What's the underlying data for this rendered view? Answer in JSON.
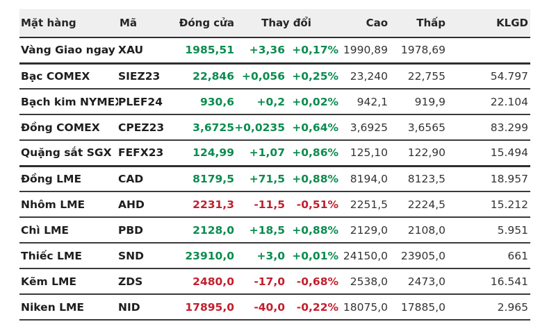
{
  "colors": {
    "up": "#0b8c4e",
    "down": "#c1202e",
    "header_bg": "#f0efef",
    "row_border": "#3a3a3a"
  },
  "chart_data": {
    "type": "table",
    "headers": {
      "name": "Mặt hàng",
      "code": "Mã",
      "close": "Đóng cửa",
      "change": "Thay đổi",
      "high": "Cao",
      "low": "Thấp",
      "volume": "KLGD"
    },
    "rows": [
      {
        "name": "Vàng Giao ngay",
        "code": "XAU",
        "close": "1985,51",
        "change": "+3,36",
        "change_pct": "+0,17%",
        "high": "1990,89",
        "low": "1978,69",
        "volume": "",
        "direction": "up",
        "group_end": true
      },
      {
        "name": "Bạc COMEX",
        "code": "SIEZ23",
        "close": "22,846",
        "change": "+0,056",
        "change_pct": "+0,25%",
        "high": "23,240",
        "low": "22,755",
        "volume": "54.797",
        "direction": "up",
        "group_end": false
      },
      {
        "name": "Bạch kim NYMEX",
        "code": "PLEF24",
        "close": "930,6",
        "change": "+0,2",
        "change_pct": "+0,02%",
        "high": "942,1",
        "low": "919,9",
        "volume": "22.104",
        "direction": "up",
        "group_end": false
      },
      {
        "name": "Đồng COMEX",
        "code": "CPEZ23",
        "close": "3,6725",
        "change": "+0,0235",
        "change_pct": "+0,64%",
        "high": "3,6925",
        "low": "3,6565",
        "volume": "83.299",
        "direction": "up",
        "group_end": false
      },
      {
        "name": "Quặng sắt SGX",
        "code": "FEFX23",
        "close": "124,99",
        "change": "+1,07",
        "change_pct": "+0,86%",
        "high": "125,10",
        "low": "122,90",
        "volume": "15.494",
        "direction": "up",
        "group_end": true
      },
      {
        "name": "Đồng LME",
        "code": "CAD",
        "close": "8179,5",
        "change": "+71,5",
        "change_pct": "+0,88%",
        "high": "8194,0",
        "low": "8123,5",
        "volume": "18.957",
        "direction": "up",
        "group_end": false
      },
      {
        "name": "Nhôm LME",
        "code": "AHD",
        "close": "2231,3",
        "change": "-11,5",
        "change_pct": "-0,51%",
        "high": "2251,5",
        "low": "2224,5",
        "volume": "15.212",
        "direction": "down",
        "group_end": false
      },
      {
        "name": "Chì LME",
        "code": "PBD",
        "close": "2128,0",
        "change": "+18,5",
        "change_pct": "+0,88%",
        "high": "2129,0",
        "low": "2108,0",
        "volume": "5.951",
        "direction": "up",
        "group_end": false
      },
      {
        "name": "Thiếc LME",
        "code": "SND",
        "close": "23910,0",
        "change": "+3,0",
        "change_pct": "+0,01%",
        "high": "24150,0",
        "low": "23905,0",
        "volume": "661",
        "direction": "up",
        "group_end": false
      },
      {
        "name": "Kẽm LME",
        "code": "ZDS",
        "close": "2480,0",
        "change": "-17,0",
        "change_pct": "-0,68%",
        "high": "2538,0",
        "low": "2473,0",
        "volume": "16.541",
        "direction": "down",
        "group_end": false
      },
      {
        "name": "Niken LME",
        "code": "NID",
        "close": "17895,0",
        "change": "-40,0",
        "change_pct": "-0,22%",
        "high": "18075,0",
        "low": "17885,0",
        "volume": "2.965",
        "direction": "down",
        "group_end": false
      }
    ]
  }
}
